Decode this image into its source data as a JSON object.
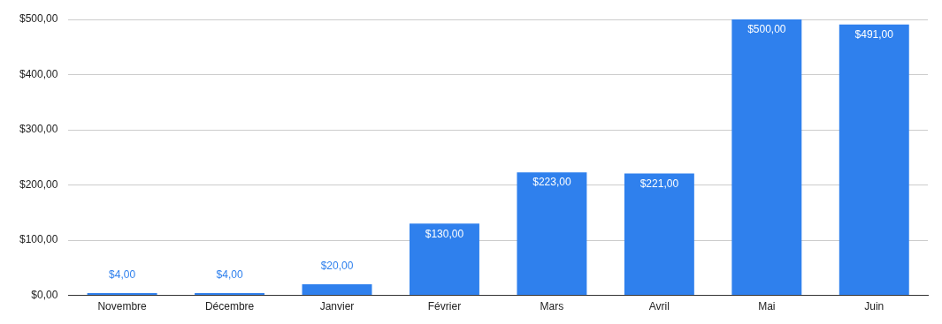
{
  "chart_data": {
    "type": "bar",
    "categories": [
      "Novembre",
      "Décembre",
      "Janvier",
      "Février",
      "Mars",
      "Avril",
      "Mai",
      "Juin"
    ],
    "values": [
      4,
      4,
      20,
      130,
      223,
      221,
      500,
      491
    ],
    "value_labels": [
      "$4,00",
      "$4,00",
      "$20,00",
      "$130,00",
      "$223,00",
      "$221,00",
      "$500,00",
      "$491,00"
    ],
    "color": "#2f80ed",
    "ylim": [
      0,
      500
    ],
    "yticks": [
      {
        "value": 0,
        "label": "$0,00"
      },
      {
        "value": 100,
        "label": "$100,00"
      },
      {
        "value": 200,
        "label": "$200,00"
      },
      {
        "value": 300,
        "label": "$300,00"
      },
      {
        "value": 400,
        "label": "$400,00"
      },
      {
        "value": 500,
        "label": "$500,00"
      }
    ],
    "grid": "y",
    "legend": false
  }
}
